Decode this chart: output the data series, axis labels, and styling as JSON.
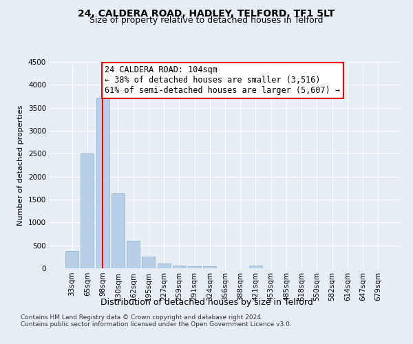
{
  "title": "24, CALDERA ROAD, HADLEY, TELFORD, TF1 5LT",
  "subtitle": "Size of property relative to detached houses in Telford",
  "xlabel": "Distribution of detached houses by size in Telford",
  "ylabel": "Number of detached properties",
  "categories": [
    "33sqm",
    "65sqm",
    "98sqm",
    "130sqm",
    "162sqm",
    "195sqm",
    "227sqm",
    "259sqm",
    "291sqm",
    "324sqm",
    "356sqm",
    "388sqm",
    "421sqm",
    "453sqm",
    "485sqm",
    "518sqm",
    "550sqm",
    "582sqm",
    "614sqm",
    "647sqm",
    "679sqm"
  ],
  "values": [
    380,
    2500,
    3720,
    1640,
    600,
    250,
    105,
    60,
    45,
    45,
    0,
    0,
    60,
    0,
    0,
    0,
    0,
    0,
    0,
    0,
    0
  ],
  "bar_color": "#b8cfe8",
  "bar_edge_color": "#8aaece",
  "property_line_x": 2,
  "annotation_line1": "24 CALDERA ROAD: 104sqm",
  "annotation_line2": "← 38% of detached houses are smaller (3,516)",
  "annotation_line3": "61% of semi-detached houses are larger (5,607) →",
  "annotation_box_color": "white",
  "annotation_box_edge_color": "red",
  "vline_color": "red",
  "ylim": [
    0,
    4500
  ],
  "yticks": [
    0,
    500,
    1000,
    1500,
    2000,
    2500,
    3000,
    3500,
    4000,
    4500
  ],
  "footer_line1": "Contains HM Land Registry data © Crown copyright and database right 2024.",
  "footer_line2": "Contains public sector information licensed under the Open Government Licence v3.0.",
  "bg_color": "#e8eef5",
  "plot_bg_color": "#e8eef5",
  "grid_color": "white",
  "title_fontsize": 10,
  "subtitle_fontsize": 9,
  "xlabel_fontsize": 9,
  "ylabel_fontsize": 8,
  "tick_fontsize": 7.5,
  "annotation_fontsize": 8.5,
  "footer_fontsize": 6.5
}
